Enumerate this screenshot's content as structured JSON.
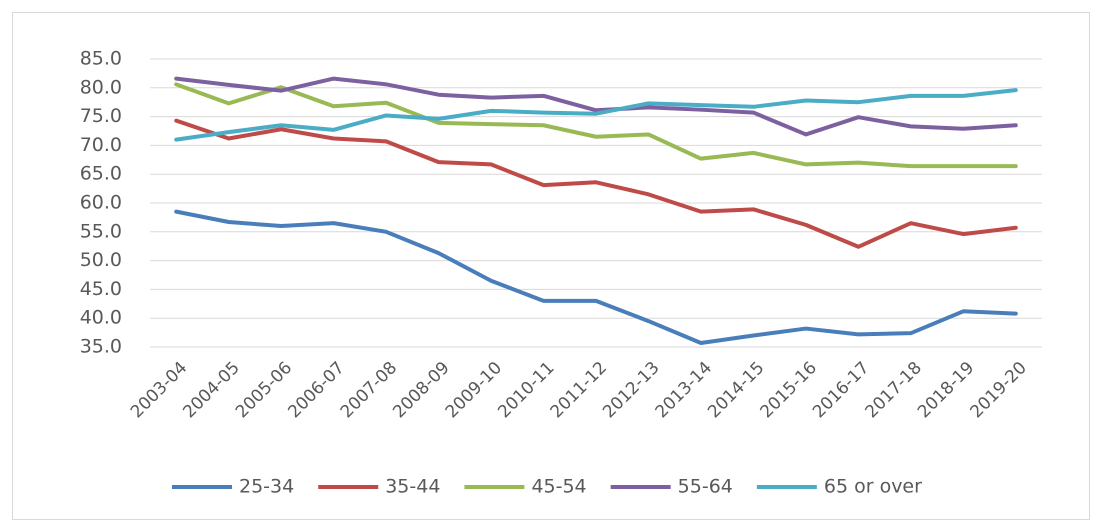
{
  "chart_data": {
    "type": "line",
    "categories": [
      "2003-04",
      "2004-05",
      "2005-06",
      "2006-07",
      "2007-08",
      "2008-09",
      "2009-10",
      "2010-11",
      "2011-12",
      "2012-13",
      "2013-14",
      "2014-15",
      "2015-16",
      "2016-17",
      "2017-18",
      "2018-19",
      "2019-20"
    ],
    "series": [
      {
        "name": "25-34",
        "color": "#4a7ebb",
        "values": [
          58.5,
          56.7,
          56.0,
          56.5,
          55.0,
          51.3,
          46.5,
          43.0,
          43.0,
          39.5,
          35.7,
          37.0,
          38.2,
          37.2,
          37.4,
          41.2,
          40.8
        ]
      },
      {
        "name": "35-44",
        "color": "#be4b48",
        "values": [
          74.3,
          71.2,
          72.8,
          71.2,
          70.7,
          67.1,
          66.7,
          63.1,
          63.6,
          61.5,
          58.5,
          58.9,
          56.2,
          52.4,
          56.5,
          54.6,
          55.7
        ]
      },
      {
        "name": "45-54",
        "color": "#98b954",
        "values": [
          80.6,
          77.3,
          80.1,
          76.8,
          77.4,
          73.9,
          73.7,
          73.5,
          71.5,
          71.9,
          67.7,
          68.7,
          66.7,
          67.0,
          66.4,
          66.4,
          66.4
        ]
      },
      {
        "name": "55-64",
        "color": "#7d60a0",
        "values": [
          81.6,
          80.5,
          79.5,
          81.6,
          80.6,
          78.8,
          78.3,
          78.6,
          76.1,
          76.6,
          76.2,
          75.7,
          71.9,
          74.9,
          73.3,
          72.9,
          73.5
        ]
      },
      {
        "name": "65 or over",
        "color": "#4bacc6",
        "values": [
          71.0,
          72.3,
          73.5,
          72.7,
          75.2,
          74.6,
          76.0,
          75.7,
          75.5,
          77.3,
          77.0,
          76.7,
          77.8,
          77.5,
          78.6,
          78.6,
          79.6
        ]
      }
    ],
    "ylim": [
      35,
      85
    ],
    "yticks": [
      {
        "value": 35,
        "label": "35.0"
      },
      {
        "value": 40,
        "label": "40.0"
      },
      {
        "value": 45,
        "label": "45.0"
      },
      {
        "value": 50,
        "label": "50.0"
      },
      {
        "value": 55,
        "label": "55.0"
      },
      {
        "value": 60,
        "label": "60.0"
      },
      {
        "value": 65,
        "label": "65.0"
      },
      {
        "value": 70,
        "label": "70.0"
      },
      {
        "value": 75,
        "label": "75.0"
      },
      {
        "value": 80,
        "label": "80.0"
      },
      {
        "value": 85,
        "label": "85.0"
      }
    ],
    "grid": true,
    "legend": "bottom"
  }
}
